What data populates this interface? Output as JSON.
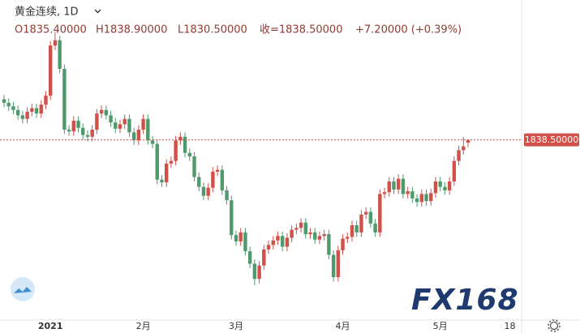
{
  "chart_data": {
    "type": "candlestick",
    "title": "黄金连续, 1D",
    "ohlc_text": [
      "O1835.40000",
      "H1838.90000",
      "L1830.50000",
      "收=1838.50000",
      "+7.20000 (+0.39%)"
    ],
    "categories": [
      null,
      null,
      null,
      null,
      null,
      null,
      null,
      null,
      null,
      null,
      "2021",
      null,
      null,
      null,
      null,
      null,
      null,
      null,
      null,
      null,
      null,
      null,
      null,
      null,
      null,
      null,
      null,
      null,
      null,
      null,
      "2月",
      null,
      null,
      null,
      null,
      null,
      null,
      null,
      null,
      null,
      null,
      null,
      null,
      null,
      null,
      null,
      null,
      null,
      null,
      null,
      "3月",
      null,
      null,
      null,
      null,
      null,
      null,
      null,
      null,
      null,
      null,
      null,
      null,
      null,
      null,
      null,
      null,
      null,
      null,
      null,
      null,
      null,
      null,
      "4月",
      null,
      null,
      null,
      null,
      null,
      null,
      null,
      null,
      null,
      null,
      null,
      null,
      null,
      null,
      null,
      null,
      null,
      null,
      null,
      null,
      "5月",
      null,
      null,
      null,
      null,
      null,
      null,
      null,
      null,
      null,
      null,
      null,
      null,
      null,
      null,
      "18"
    ],
    "series": {
      "open": [
        1884,
        1880,
        1876,
        1872,
        1866,
        1862,
        1870,
        1874,
        1868,
        1878,
        1888,
        1944,
        1950,
        1918,
        1850,
        1848,
        1860,
        1852,
        1844,
        1842,
        1850,
        1868,
        1872,
        1866,
        1858,
        1851,
        1856,
        1862,
        1847,
        1838,
        1850,
        1862,
        1838,
        1834,
        1794,
        1791,
        1812,
        1815,
        1838,
        1842,
        1824,
        1820,
        1797,
        1786,
        1776,
        1785,
        1803,
        1805,
        1782,
        1771,
        1732,
        1725,
        1735,
        1714,
        1700,
        1683,
        1698,
        1716,
        1721,
        1726,
        1731,
        1719,
        1729,
        1738,
        1740,
        1746,
        1733,
        1735,
        1727,
        1731,
        1733,
        1710,
        1685,
        1715,
        1728,
        1730,
        1743,
        1735,
        1755,
        1758,
        1745,
        1735,
        1778,
        1780,
        1792,
        1783,
        1795,
        1778,
        1781,
        1773,
        1769,
        1778,
        1770,
        1779,
        1792,
        1786,
        1782,
        1792,
        1815,
        1827,
        1835.4,
        null,
        null,
        null,
        null,
        null,
        null,
        null,
        null,
        null
      ],
      "high": [
        1889,
        1885,
        1881,
        1877,
        1871,
        1875,
        1879,
        1879,
        1883,
        1893,
        1949,
        1959,
        1955,
        1923,
        1855,
        1865,
        1865,
        1857,
        1849,
        1855,
        1873,
        1877,
        1877,
        1871,
        1863,
        1861,
        1867,
        1867,
        1852,
        1855,
        1867,
        1867,
        1843,
        1839,
        1799,
        1817,
        1820,
        1843,
        1847,
        1847,
        1829,
        1825,
        1802,
        1791,
        1790,
        1808,
        1810,
        1810,
        1787,
        1776,
        1737,
        1740,
        1740,
        1719,
        1705,
        1703,
        1721,
        1726,
        1731,
        1736,
        1736,
        1734,
        1743,
        1745,
        1751,
        1751,
        1740,
        1740,
        1736,
        1738,
        1738,
        1715,
        1720,
        1733,
        1735,
        1748,
        1748,
        1760,
        1763,
        1763,
        1750,
        1783,
        1785,
        1797,
        1797,
        1800,
        1800,
        1786,
        1786,
        1778,
        1783,
        1783,
        1784,
        1797,
        1797,
        1791,
        1797,
        1820,
        1832,
        1842,
        1838.9,
        null,
        null,
        null,
        null,
        null,
        null,
        null,
        null,
        null
      ],
      "low": [
        1875,
        1871,
        1867,
        1861,
        1857,
        1857,
        1865,
        1863,
        1863,
        1873,
        1883,
        1939,
        1913,
        1845,
        1843,
        1843,
        1847,
        1839,
        1837,
        1837,
        1845,
        1863,
        1861,
        1853,
        1846,
        1846,
        1851,
        1842,
        1833,
        1833,
        1845,
        1833,
        1829,
        1789,
        1786,
        1786,
        1807,
        1810,
        1833,
        1819,
        1815,
        1792,
        1781,
        1771,
        1771,
        1780,
        1798,
        1777,
        1766,
        1727,
        1720,
        1720,
        1709,
        1695,
        1676,
        1678,
        1693,
        1711,
        1716,
        1721,
        1714,
        1714,
        1724,
        1733,
        1735,
        1728,
        1728,
        1722,
        1722,
        1726,
        1705,
        1680,
        1680,
        1710,
        1723,
        1725,
        1730,
        1730,
        1750,
        1740,
        1730,
        1730,
        1773,
        1775,
        1778,
        1778,
        1773,
        1773,
        1768,
        1764,
        1764,
        1765,
        1765,
        1774,
        1781,
        1777,
        1777,
        1787,
        1810,
        1822,
        1830.5,
        null,
        null,
        null,
        null,
        null,
        null,
        null,
        null,
        null
      ],
      "close": [
        1880,
        1876,
        1872,
        1866,
        1862,
        1870,
        1874,
        1868,
        1878,
        1888,
        1944,
        1950,
        1918,
        1850,
        1848,
        1860,
        1852,
        1844,
        1842,
        1850,
        1868,
        1872,
        1866,
        1858,
        1851,
        1856,
        1862,
        1847,
        1838,
        1850,
        1862,
        1838,
        1834,
        1794,
        1791,
        1812,
        1815,
        1838,
        1842,
        1824,
        1820,
        1797,
        1786,
        1776,
        1785,
        1803,
        1805,
        1782,
        1771,
        1732,
        1725,
        1735,
        1714,
        1700,
        1683,
        1698,
        1716,
        1721,
        1726,
        1731,
        1719,
        1729,
        1738,
        1740,
        1746,
        1733,
        1735,
        1727,
        1731,
        1733,
        1710,
        1685,
        1715,
        1728,
        1730,
        1743,
        1735,
        1755,
        1758,
        1745,
        1735,
        1778,
        1780,
        1792,
        1783,
        1795,
        1778,
        1781,
        1773,
        1769,
        1778,
        1770,
        1779,
        1792,
        1786,
        1782,
        1792,
        1815,
        1827,
        1831.3,
        1838.5,
        null,
        null,
        null,
        null,
        null,
        null,
        null,
        null,
        null
      ]
    },
    "up_color": "#d0504a",
    "down_color": "#4f9a6c",
    "ylim": [
      1637,
      1995
    ],
    "last_price": {
      "value": 1838.5,
      "label": "1838.50000"
    },
    "last_price_color": "#d0504a",
    "watermark": "FX168"
  }
}
